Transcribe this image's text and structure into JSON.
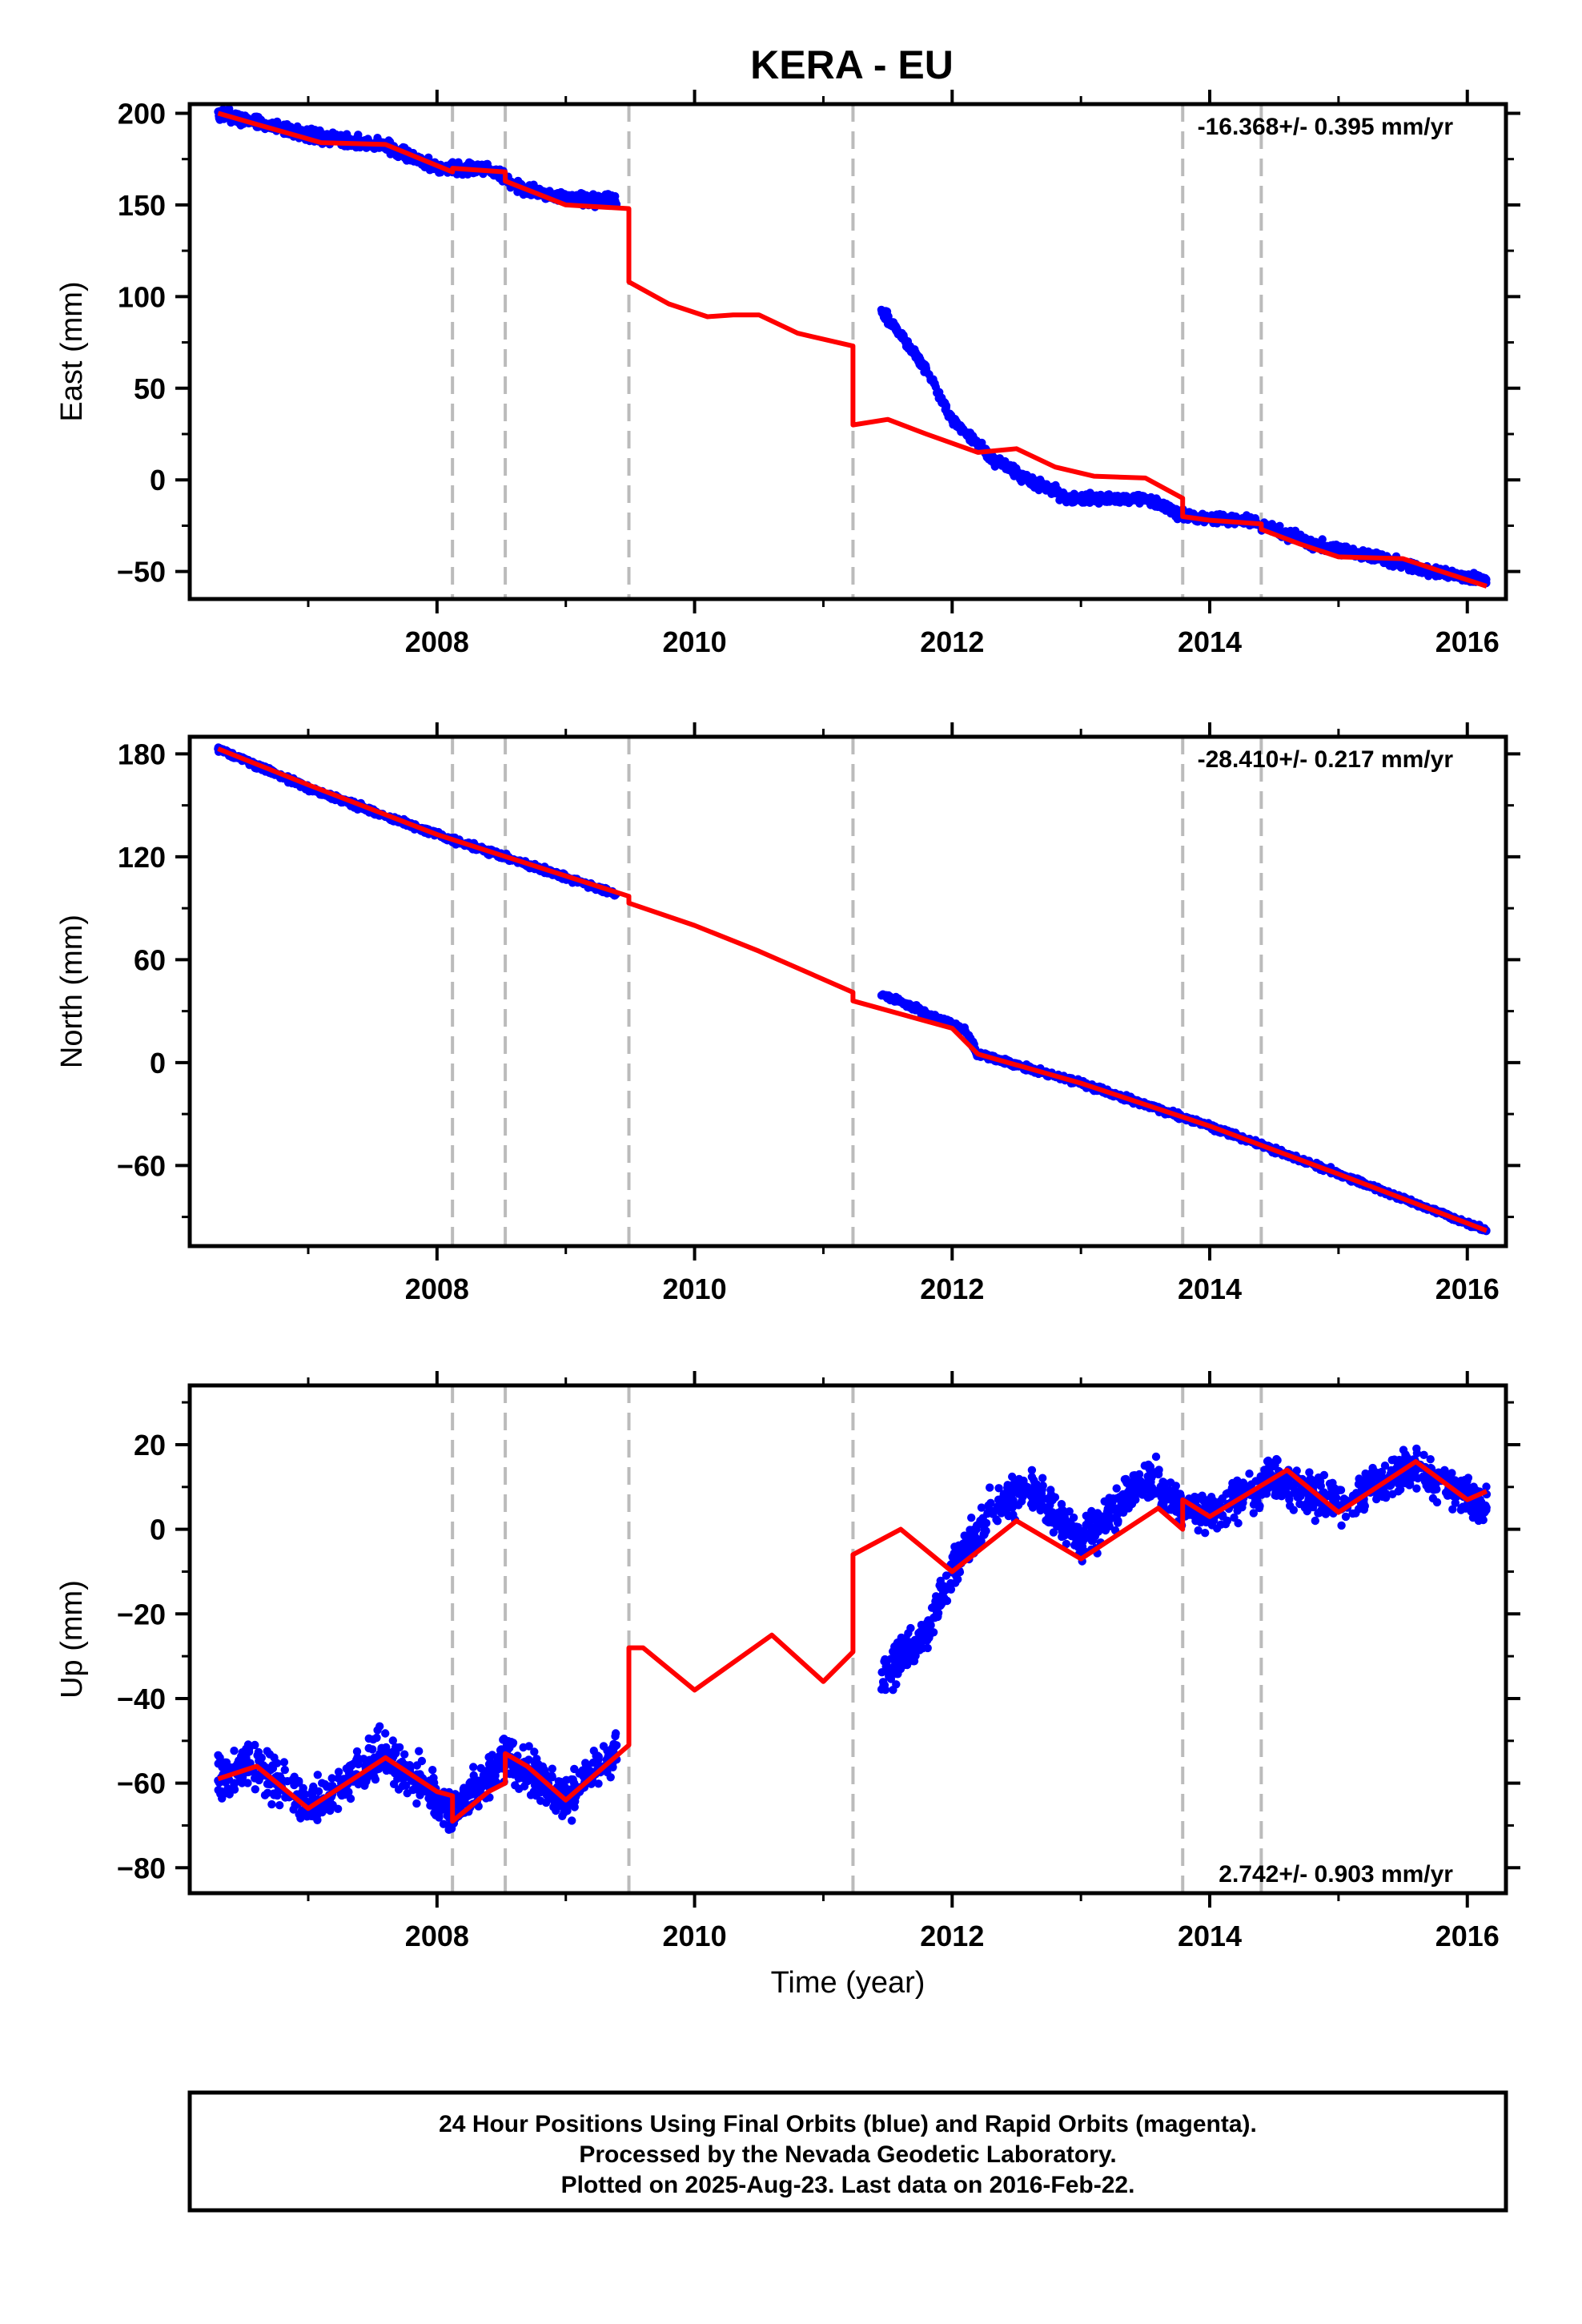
{
  "title": "KERA - EU",
  "footer": {
    "lines": [
      "24 Hour Positions Using Final Orbits (blue) and Rapid Orbits (magenta).",
      "Processed by the Nevada Geodetic Laboratory.",
      "Plotted on 2025-Aug-23. Last data on 2016-Feb-22."
    ]
  },
  "colors": {
    "data": "#0000ff",
    "model": "#ff0000",
    "offset_line": "#bbbbbb",
    "frame": "#000000"
  },
  "chart_data": [
    {
      "type": "scatter",
      "ylabel": "East (mm)",
      "xlabel": "",
      "rate_label": "-16.368+/- 0.395 mm/yr",
      "xlim": [
        2006.08,
        2016.3
      ],
      "ylim": [
        -65,
        205
      ],
      "xticks": [
        2008,
        2010,
        2012,
        2014,
        2016
      ],
      "xtick_labels": [
        "2008",
        "2010",
        "2012",
        "2014",
        "2016"
      ],
      "yticks": [
        -50,
        0,
        50,
        100,
        150,
        200
      ],
      "ytick_labels": [
        "−50",
        "0",
        "50",
        "100",
        "150",
        "200"
      ],
      "grid": false,
      "offsets": [
        2008.12,
        2008.53,
        2009.49,
        2011.23,
        2013.79,
        2014.4
      ],
      "series": [
        {
          "role": "data",
          "segments": [
            {
              "x_start": 2006.3,
              "x_end": 2009.4,
              "noise": 3,
              "x": [
                2006.3,
                2007.0,
                2007.6,
                2008.0,
                2008.4,
                2008.7,
                2009.0,
                2009.4
              ],
              "y": [
                200,
                188,
                182,
                170,
                170,
                158,
                154,
                152
              ]
            },
            {
              "x_start": 2011.45,
              "x_end": 2016.15,
              "noise": 2.5,
              "x": [
                2011.45,
                2011.8,
                2012.0,
                2012.3,
                2012.6,
                2012.9,
                2013.5,
                2013.8,
                2014.3,
                2014.8,
                2015.3,
                2015.6,
                2016.15
              ],
              "y": [
                93,
                60,
                33,
                12,
                0,
                -10,
                -10,
                -20,
                -22,
                -35,
                -42,
                -48,
                -55
              ]
            }
          ]
        },
        {
          "role": "model",
          "x": [
            2006.3,
            2006.6,
            2007.1,
            2007.6,
            2008.12,
            2008.12,
            2008.53,
            2008.53,
            2009.0,
            2009.49,
            2009.49,
            2009.8,
            2010.1,
            2010.3,
            2010.5,
            2010.8,
            2011.23,
            2011.23,
            2011.5,
            2011.8,
            2012.2,
            2012.5,
            2012.8,
            2013.1,
            2013.5,
            2013.79,
            2013.79,
            2014.0,
            2014.4,
            2014.4,
            2014.7,
            2015.0,
            2015.5,
            2015.8,
            2016.15
          ],
          "y": [
            200,
            194,
            184,
            183,
            168,
            170,
            168,
            163,
            150,
            148,
            108,
            96,
            89,
            90,
            90,
            80,
            73,
            30,
            33,
            25,
            15,
            17,
            7,
            2,
            1,
            -10,
            -20,
            -22,
            -24,
            -27,
            -35,
            -42,
            -43,
            -50,
            -58
          ]
        }
      ]
    },
    {
      "type": "scatter",
      "ylabel": "North (mm)",
      "xlabel": "",
      "rate_label": "-28.410+/- 0.217 mm/yr",
      "xlim": [
        2006.08,
        2016.3
      ],
      "ylim": [
        -107,
        190
      ],
      "xticks": [
        2008,
        2010,
        2012,
        2014,
        2016
      ],
      "xtick_labels": [
        "2008",
        "2010",
        "2012",
        "2014",
        "2016"
      ],
      "yticks": [
        -60,
        0,
        60,
        120,
        180
      ],
      "ytick_labels": [
        "−60",
        "0",
        "60",
        "120",
        "180"
      ],
      "grid": false,
      "offsets": [
        2008.12,
        2008.53,
        2009.49,
        2011.23,
        2013.79,
        2014.4
      ],
      "series": [
        {
          "role": "data",
          "segments": [
            {
              "x_start": 2006.3,
              "x_end": 2009.4,
              "noise": 1.5,
              "x": [
                2006.3,
                2007.0,
                2008.0,
                2009.4
              ],
              "y": [
                183,
                160,
                133,
                98
              ]
            },
            {
              "x_start": 2011.45,
              "x_end": 2016.15,
              "noise": 1.5,
              "x": [
                2011.45,
                2012.1,
                2012.2,
                2013.0,
                2014.0,
                2015.0,
                2016.15
              ],
              "y": [
                40,
                19,
                5,
                -12,
                -37,
                -65,
                -98
              ]
            }
          ]
        },
        {
          "role": "model",
          "x": [
            2006.3,
            2007.0,
            2008.0,
            2009.49,
            2009.49,
            2010.0,
            2010.5,
            2011.23,
            2011.23,
            2012.0,
            2012.2,
            2013.0,
            2014.0,
            2015.0,
            2016.15
          ],
          "y": [
            183,
            162,
            133,
            97,
            93,
            80,
            65,
            41,
            36,
            20,
            5,
            -12,
            -37,
            -65,
            -98
          ]
        }
      ]
    },
    {
      "type": "scatter",
      "ylabel": "Up (mm)",
      "xlabel": "Time (year)",
      "rate_label": "2.742+/- 0.903 mm/yr",
      "xlim": [
        2006.08,
        2016.3
      ],
      "ylim": [
        -86,
        34
      ],
      "xticks": [
        2008,
        2010,
        2012,
        2014,
        2016
      ],
      "xtick_labels": [
        "2008",
        "2010",
        "2012",
        "2014",
        "2016"
      ],
      "yticks": [
        -80,
        -60,
        -40,
        -20,
        0,
        20
      ],
      "ytick_labels": [
        "−80",
        "−60",
        "−40",
        "−20",
        "0",
        "20"
      ],
      "grid": false,
      "offsets": [
        2008.12,
        2008.53,
        2009.49,
        2011.23,
        2013.79,
        2014.4
      ],
      "series": [
        {
          "role": "data",
          "segments": [
            {
              "x_start": 2006.3,
              "x_end": 2009.4,
              "noise": 5,
              "x": [
                2006.3,
                2006.6,
                2007.0,
                2007.6,
                2008.0,
                2008.12,
                2008.53,
                2009.0,
                2009.4
              ],
              "y": [
                -58,
                -55,
                -66,
                -53,
                -63,
                -68,
                -53,
                -64,
                -52
              ]
            },
            {
              "x_start": 2011.45,
              "x_end": 2016.15,
              "noise": 4.5,
              "x": [
                2011.45,
                2011.8,
                2012.0,
                2012.3,
                2012.6,
                2013.0,
                2013.5,
                2013.8,
                2014.0,
                2014.5,
                2015.0,
                2015.6,
                2016.15
              ],
              "y": [
                -35,
                -25,
                -10,
                5,
                10,
                -3,
                13,
                5,
                4,
                12,
                6,
                15,
                5
              ]
            }
          ]
        },
        {
          "role": "model",
          "x": [
            2006.3,
            2006.6,
            2007.0,
            2007.6,
            2008.0,
            2008.12,
            2008.12,
            2008.4,
            2008.53,
            2008.53,
            2008.7,
            2009.0,
            2009.49,
            2009.49,
            2009.6,
            2010.0,
            2010.6,
            2011.0,
            2011.23,
            2011.23,
            2011.6,
            2012.0,
            2012.5,
            2013.0,
            2013.6,
            2013.79,
            2013.79,
            2014.0,
            2014.6,
            2015.0,
            2015.6,
            2016.0,
            2016.15
          ],
          "y": [
            -59,
            -56,
            -66,
            -54,
            -62,
            -63,
            -69,
            -62,
            -60,
            -53,
            -56,
            -64,
            -51,
            -28,
            -28,
            -38,
            -25,
            -36,
            -29,
            -6,
            0,
            -10,
            2,
            -7,
            5,
            0,
            7,
            3,
            14,
            4,
            16,
            7,
            9
          ]
        }
      ]
    }
  ]
}
